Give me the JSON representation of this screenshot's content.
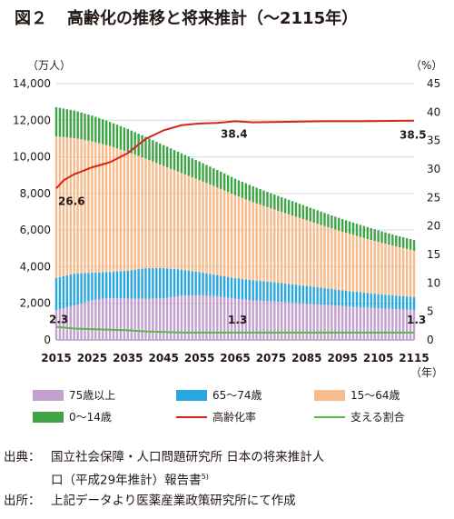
{
  "title": {
    "label": "図２",
    "text": "高齢化の推移と将来推計（〜2115年）"
  },
  "chart_data": {
    "type": "bar",
    "stacked": true,
    "y_left_unit": "（万人）",
    "y_right_unit": "（%）",
    "x_unit": "（年）",
    "ylim_left": [
      0,
      14000
    ],
    "ylim_right": [
      0,
      45
    ],
    "y_left_ticks": [
      "0",
      "2,000",
      "4,000",
      "6,000",
      "8,000",
      "10,000",
      "12,000",
      "14,000"
    ],
    "y_right_ticks": [
      "0",
      "5",
      "10",
      "15",
      "20",
      "25",
      "30",
      "35",
      "40",
      "45"
    ],
    "x_ticks": [
      "2015",
      "2025",
      "2035",
      "2045",
      "2055",
      "2065",
      "2075",
      "2085",
      "2095",
      "2105",
      "2115"
    ],
    "year_start": 2015,
    "year_end": 2115,
    "series": [
      {
        "name": "75歳以上",
        "color": "#c4a0cf",
        "anchors": [
          [
            2015,
            1632
          ],
          [
            2020,
            1872
          ],
          [
            2025,
            2180
          ],
          [
            2030,
            2288
          ],
          [
            2035,
            2260
          ],
          [
            2040,
            2239
          ],
          [
            2045,
            2277
          ],
          [
            2050,
            2417
          ],
          [
            2055,
            2446
          ],
          [
            2060,
            2387
          ],
          [
            2065,
            2248
          ],
          [
            2070,
            2158
          ],
          [
            2075,
            2110
          ],
          [
            2080,
            2050
          ],
          [
            2085,
            1990
          ],
          [
            2090,
            1920
          ],
          [
            2095,
            1850
          ],
          [
            2100,
            1790
          ],
          [
            2105,
            1730
          ],
          [
            2110,
            1680
          ],
          [
            2115,
            1640
          ]
        ]
      },
      {
        "name": "65〜74歳",
        "color": "#29a8e0",
        "anchors": [
          [
            2015,
            1755
          ],
          [
            2020,
            1747
          ],
          [
            2025,
            1497
          ],
          [
            2030,
            1428
          ],
          [
            2035,
            1522
          ],
          [
            2040,
            1681
          ],
          [
            2045,
            1643
          ],
          [
            2050,
            1424
          ],
          [
            2055,
            1258
          ],
          [
            2060,
            1153
          ],
          [
            2065,
            1133
          ],
          [
            2070,
            1100
          ],
          [
            2075,
            1060
          ],
          [
            2080,
            1010
          ],
          [
            2085,
            960
          ],
          [
            2090,
            910
          ],
          [
            2095,
            860
          ],
          [
            2100,
            815
          ],
          [
            2105,
            775
          ],
          [
            2110,
            740
          ],
          [
            2115,
            700
          ]
        ]
      },
      {
        "name": "15〜64歳",
        "color": "#f7bb8c",
        "anchors": [
          [
            2015,
            7728
          ],
          [
            2020,
            7406
          ],
          [
            2025,
            7170
          ],
          [
            2030,
            6875
          ],
          [
            2035,
            6494
          ],
          [
            2040,
            5978
          ],
          [
            2045,
            5584
          ],
          [
            2050,
            5275
          ],
          [
            2055,
            5028
          ],
          [
            2060,
            4793
          ],
          [
            2065,
            4529
          ],
          [
            2070,
            4270
          ],
          [
            2075,
            4020
          ],
          [
            2080,
            3800
          ],
          [
            2085,
            3590
          ],
          [
            2090,
            3390
          ],
          [
            2095,
            3200
          ],
          [
            2100,
            3020
          ],
          [
            2105,
            2850
          ],
          [
            2110,
            2690
          ],
          [
            2115,
            2540
          ]
        ]
      },
      {
        "name": "0〜14歳",
        "color": "#3fa447",
        "anchors": [
          [
            2015,
            1595
          ],
          [
            2020,
            1507
          ],
          [
            2025,
            1407
          ],
          [
            2030,
            1321
          ],
          [
            2035,
            1246
          ],
          [
            2040,
            1194
          ],
          [
            2045,
            1138
          ],
          [
            2050,
            1077
          ],
          [
            2055,
            1012
          ],
          [
            2060,
            951
          ],
          [
            2065,
            898
          ],
          [
            2070,
            860
          ],
          [
            2075,
            825
          ],
          [
            2080,
            790
          ],
          [
            2085,
            755
          ],
          [
            2090,
            720
          ],
          [
            2095,
            690
          ],
          [
            2100,
            660
          ],
          [
            2105,
            630
          ],
          [
            2110,
            600
          ],
          [
            2115,
            575
          ]
        ]
      }
    ],
    "aging_rate": {
      "name": "高齢化率",
      "color": "#d7251d",
      "anchors": [
        [
          2015,
          26.6
        ],
        [
          2017,
          28
        ],
        [
          2020,
          29.1
        ],
        [
          2025,
          30.3
        ],
        [
          2030,
          31.2
        ],
        [
          2035,
          32.8
        ],
        [
          2040,
          35.3
        ],
        [
          2045,
          36.8
        ],
        [
          2050,
          37.7
        ],
        [
          2055,
          38.0
        ],
        [
          2060,
          38.1
        ],
        [
          2065,
          38.4
        ],
        [
          2070,
          38.2
        ],
        [
          2080,
          38.3
        ],
        [
          2090,
          38.4
        ],
        [
          2100,
          38.4
        ],
        [
          2115,
          38.5
        ]
      ]
    },
    "support_ratio": {
      "name": "支える割合",
      "color": "#58b947",
      "anchors": [
        [
          2015,
          2.3
        ],
        [
          2020,
          2.0
        ],
        [
          2025,
          1.9
        ],
        [
          2030,
          1.8
        ],
        [
          2035,
          1.7
        ],
        [
          2040,
          1.5
        ],
        [
          2045,
          1.4
        ],
        [
          2050,
          1.3
        ],
        [
          2060,
          1.3
        ],
        [
          2065,
          1.3
        ],
        [
          2080,
          1.3
        ],
        [
          2100,
          1.3
        ],
        [
          2115,
          1.3
        ]
      ]
    },
    "annotations": [
      {
        "text": "26.6",
        "year": 2015,
        "side": "right",
        "value": 26.6
      },
      {
        "text": "38.4",
        "year": 2065,
        "side": "right",
        "value": 38.4
      },
      {
        "text": "38.5",
        "year": 2115,
        "side": "right",
        "value": 38.5
      },
      {
        "text": "2.3",
        "year": 2015,
        "side": "right",
        "value": 2.3
      },
      {
        "text": "1.3",
        "year": 2065,
        "side": "right",
        "value": 1.3
      },
      {
        "text": "1.3",
        "year": 2115,
        "side": "right",
        "value": 1.3
      }
    ],
    "gridlines": "horizontal",
    "legend_position": "bottom"
  },
  "source": {
    "label1": "出典：",
    "line1": "国立社会保障・人口問題研究所 日本の将来推計人",
    "line2": "口（平成29年推計）報告書",
    "ref": "5)",
    "label2": "出所：",
    "line3": "上記データより医薬産業政策研究所にて作成"
  }
}
